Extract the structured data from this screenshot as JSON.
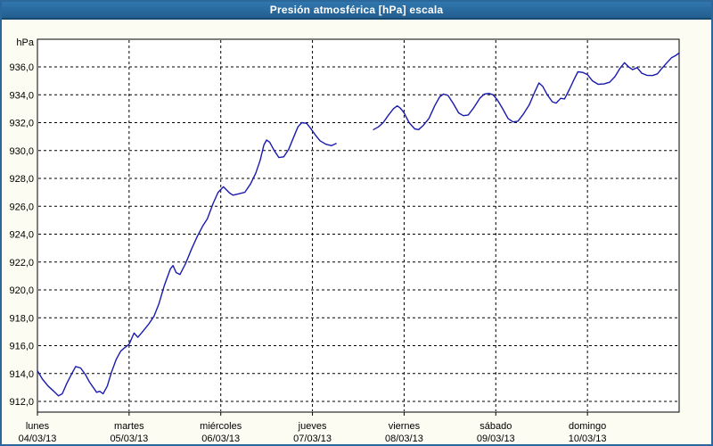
{
  "window": {
    "title": "Presión atmosférica [hPa] escala"
  },
  "colors": {
    "titlebar_bg_top": "#3077ae",
    "titlebar_bg_bottom": "#235e90",
    "titlebar_text": "#ffffff",
    "window_border": "#2b6899",
    "page_bg": "#fcfcf2",
    "plot_bg": "#ffffff",
    "grid": "#000000",
    "series_line": "#1a1aae",
    "axis_text": "#000000"
  },
  "chart_data": {
    "type": "line",
    "title": "Presión atmosférica [hPa] escala",
    "unit_label": "hPa",
    "ylabel": "hPa",
    "xlabel": "",
    "ylim": [
      912,
      936
    ],
    "y_grid_step": 2,
    "grid_style": "dashed",
    "legend": "none",
    "y_ticks": {
      "values": [
        936,
        934,
        932,
        930,
        928,
        926,
        924,
        922,
        920,
        918,
        916,
        914,
        912
      ],
      "labels": [
        "936,0",
        "934,0",
        "932,0",
        "930,0",
        "928,0",
        "926,0",
        "924,0",
        "922,0",
        "920,0",
        "918,0",
        "916,0",
        "914,0",
        "912,0"
      ]
    },
    "x_ticks": [
      {
        "day": "lunes",
        "date": "04/03/13"
      },
      {
        "day": "martes",
        "date": "05/03/13"
      },
      {
        "day": "miércoles",
        "date": "06/03/13"
      },
      {
        "day": "jueves",
        "date": "07/03/13"
      },
      {
        "day": "viernes",
        "date": "08/03/13"
      },
      {
        "day": "sábado",
        "date": "09/03/13"
      },
      {
        "day": "domingo",
        "date": "10/03/13"
      }
    ],
    "x_unit": "hours since 04/03/13 00:00",
    "x_span_hours": 168,
    "data_gap_hours": [
      78.2,
      88.0
    ],
    "series": [
      {
        "name": "presion-atmosferica",
        "color": "#1a1aae",
        "segments": [
          [
            [
              0,
              914.2
            ],
            [
              1.3,
              913.6
            ],
            [
              2.8,
              913.1
            ],
            [
              4.2,
              912.75
            ],
            [
              5.5,
              912.4
            ],
            [
              6.5,
              912.55
            ],
            [
              7.7,
              913.3
            ],
            [
              9.0,
              914.0
            ],
            [
              10.0,
              914.5
            ],
            [
              11.3,
              914.4
            ],
            [
              12.5,
              913.95
            ],
            [
              13.6,
              913.4
            ],
            [
              15.5,
              912.65
            ],
            [
              16.3,
              912.72
            ],
            [
              17.2,
              912.55
            ],
            [
              18.3,
              913.1
            ],
            [
              19.4,
              914.1
            ],
            [
              20.6,
              915.0
            ],
            [
              21.8,
              915.6
            ],
            [
              22.6,
              915.8
            ],
            [
              24.0,
              916.1
            ],
            [
              25.3,
              916.9
            ],
            [
              26.3,
              916.6
            ],
            [
              27.5,
              917.0
            ],
            [
              29.0,
              917.5
            ],
            [
              30.5,
              918.1
            ],
            [
              31.8,
              919.0
            ],
            [
              33.2,
              920.3
            ],
            [
              34.8,
              921.5
            ],
            [
              35.5,
              921.75
            ],
            [
              36.3,
              921.25
            ],
            [
              37.3,
              921.1
            ],
            [
              38.8,
              921.9
            ],
            [
              40.3,
              922.9
            ],
            [
              41.8,
              923.8
            ],
            [
              43.3,
              924.6
            ],
            [
              44.5,
              925.1
            ],
            [
              46.0,
              926.2
            ],
            [
              47.3,
              927.0
            ],
            [
              48.7,
              927.4
            ],
            [
              50.3,
              926.95
            ],
            [
              51.2,
              926.8
            ],
            [
              52.8,
              926.9
            ],
            [
              54.3,
              927.0
            ],
            [
              55.8,
              927.6
            ],
            [
              57.2,
              928.4
            ],
            [
              58.3,
              929.3
            ],
            [
              59.3,
              930.4
            ],
            [
              60.0,
              930.75
            ],
            [
              60.8,
              930.6
            ],
            [
              62.0,
              930.0
            ],
            [
              63.2,
              929.5
            ],
            [
              64.5,
              929.55
            ],
            [
              65.8,
              930.1
            ],
            [
              67.0,
              930.9
            ],
            [
              68.2,
              931.7
            ],
            [
              69.2,
              932.0
            ],
            [
              70.5,
              931.95
            ],
            [
              71.5,
              931.6
            ],
            [
              72.8,
              931.1
            ],
            [
              74.0,
              930.7
            ],
            [
              75.5,
              930.45
            ],
            [
              77.0,
              930.35
            ],
            [
              78.2,
              930.5
            ]
          ],
          [
            [
              88.0,
              931.5
            ],
            [
              89.3,
              931.7
            ],
            [
              90.5,
              932.0
            ],
            [
              91.8,
              932.5
            ],
            [
              93.2,
              933.0
            ],
            [
              94.2,
              933.2
            ],
            [
              95.0,
              933.05
            ],
            [
              96.0,
              932.7
            ],
            [
              97.3,
              932.0
            ],
            [
              98.8,
              931.55
            ],
            [
              99.8,
              931.5
            ],
            [
              101.0,
              931.8
            ],
            [
              102.5,
              932.3
            ],
            [
              104.0,
              933.2
            ],
            [
              105.3,
              933.85
            ],
            [
              106.3,
              934.05
            ],
            [
              107.5,
              933.95
            ],
            [
              108.8,
              933.4
            ],
            [
              110.3,
              932.7
            ],
            [
              111.5,
              932.5
            ],
            [
              112.8,
              932.55
            ],
            [
              114.3,
              933.1
            ],
            [
              115.8,
              933.75
            ],
            [
              117.0,
              934.05
            ],
            [
              118.2,
              934.1
            ],
            [
              119.3,
              934.0
            ],
            [
              120.5,
              933.6
            ],
            [
              121.8,
              933.0
            ],
            [
              123.2,
              932.3
            ],
            [
              124.5,
              932.05
            ],
            [
              125.8,
              932.1
            ],
            [
              127.2,
              932.6
            ],
            [
              128.8,
              933.3
            ],
            [
              130.2,
              934.2
            ],
            [
              131.3,
              934.85
            ],
            [
              132.3,
              934.6
            ],
            [
              133.5,
              934.0
            ],
            [
              134.8,
              933.5
            ],
            [
              135.8,
              933.4
            ],
            [
              137.0,
              933.75
            ],
            [
              138.0,
              933.7
            ],
            [
              139.3,
              934.4
            ],
            [
              140.5,
              935.1
            ],
            [
              141.5,
              935.65
            ],
            [
              142.8,
              935.6
            ],
            [
              144.0,
              935.45
            ],
            [
              145.3,
              935.0
            ],
            [
              146.8,
              934.75
            ],
            [
              148.3,
              934.78
            ],
            [
              149.8,
              934.9
            ],
            [
              151.2,
              935.3
            ],
            [
              152.5,
              935.9
            ],
            [
              153.7,
              936.3
            ],
            [
              154.8,
              936.0
            ],
            [
              155.8,
              935.8
            ],
            [
              157.0,
              935.95
            ],
            [
              158.2,
              935.55
            ],
            [
              159.5,
              935.4
            ],
            [
              161.0,
              935.38
            ],
            [
              162.3,
              935.5
            ],
            [
              163.5,
              935.9
            ],
            [
              164.8,
              936.3
            ],
            [
              166.0,
              936.65
            ],
            [
              167.0,
              936.8
            ],
            [
              168.0,
              937.0
            ]
          ]
        ]
      }
    ]
  }
}
